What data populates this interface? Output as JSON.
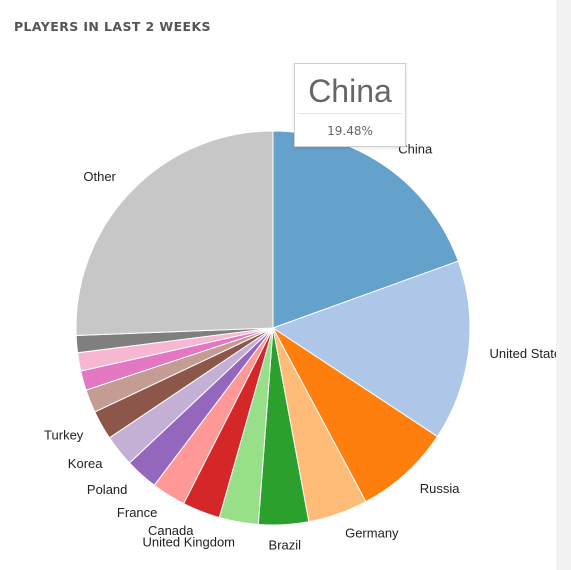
{
  "panel": {
    "title": "PLAYERS IN LAST 2 WEEKS"
  },
  "tooltip": {
    "title": "China",
    "value": "19.48%"
  },
  "chart_data": {
    "type": "pie",
    "title": "PLAYERS IN LAST 2 WEEKS",
    "start_angle_deg": 0,
    "direction": "clockwise",
    "slices": [
      {
        "label": "China",
        "value": 19.48,
        "color": "#64a2cc"
      },
      {
        "label": "United States",
        "value": 14.8,
        "color": "#aec7e8"
      },
      {
        "label": "Russia",
        "value": 7.9,
        "color": "#ff7f0e"
      },
      {
        "label": "Germany",
        "value": 4.9,
        "color": "#ffbb78"
      },
      {
        "label": "Brazil",
        "value": 4.1,
        "color": "#2ca02c"
      },
      {
        "label": "United Kingdom",
        "value": 3.2,
        "color": "#98df8a"
      },
      {
        "label": "Canada",
        "value": 3.1,
        "color": "#d62728"
      },
      {
        "label": "France",
        "value": 2.8,
        "color": "#ff9896"
      },
      {
        "label": "Poland",
        "value": 2.7,
        "color": "#9467bd"
      },
      {
        "label": "Korea",
        "value": 2.6,
        "color": "#c5b0d5"
      },
      {
        "label": "Turkey",
        "value": 2.4,
        "color": "#8c564b"
      },
      {
        "label": "",
        "value": 1.9,
        "color": "#c49c94"
      },
      {
        "label": "",
        "value": 1.6,
        "color": "#e377c2"
      },
      {
        "label": "",
        "value": 1.5,
        "color": "#f7b6d2"
      },
      {
        "label": "",
        "value": 1.4,
        "color": "#7f7f7f"
      },
      {
        "label": "Other",
        "value": 25.6,
        "color": "#c7c7c7"
      }
    ]
  }
}
